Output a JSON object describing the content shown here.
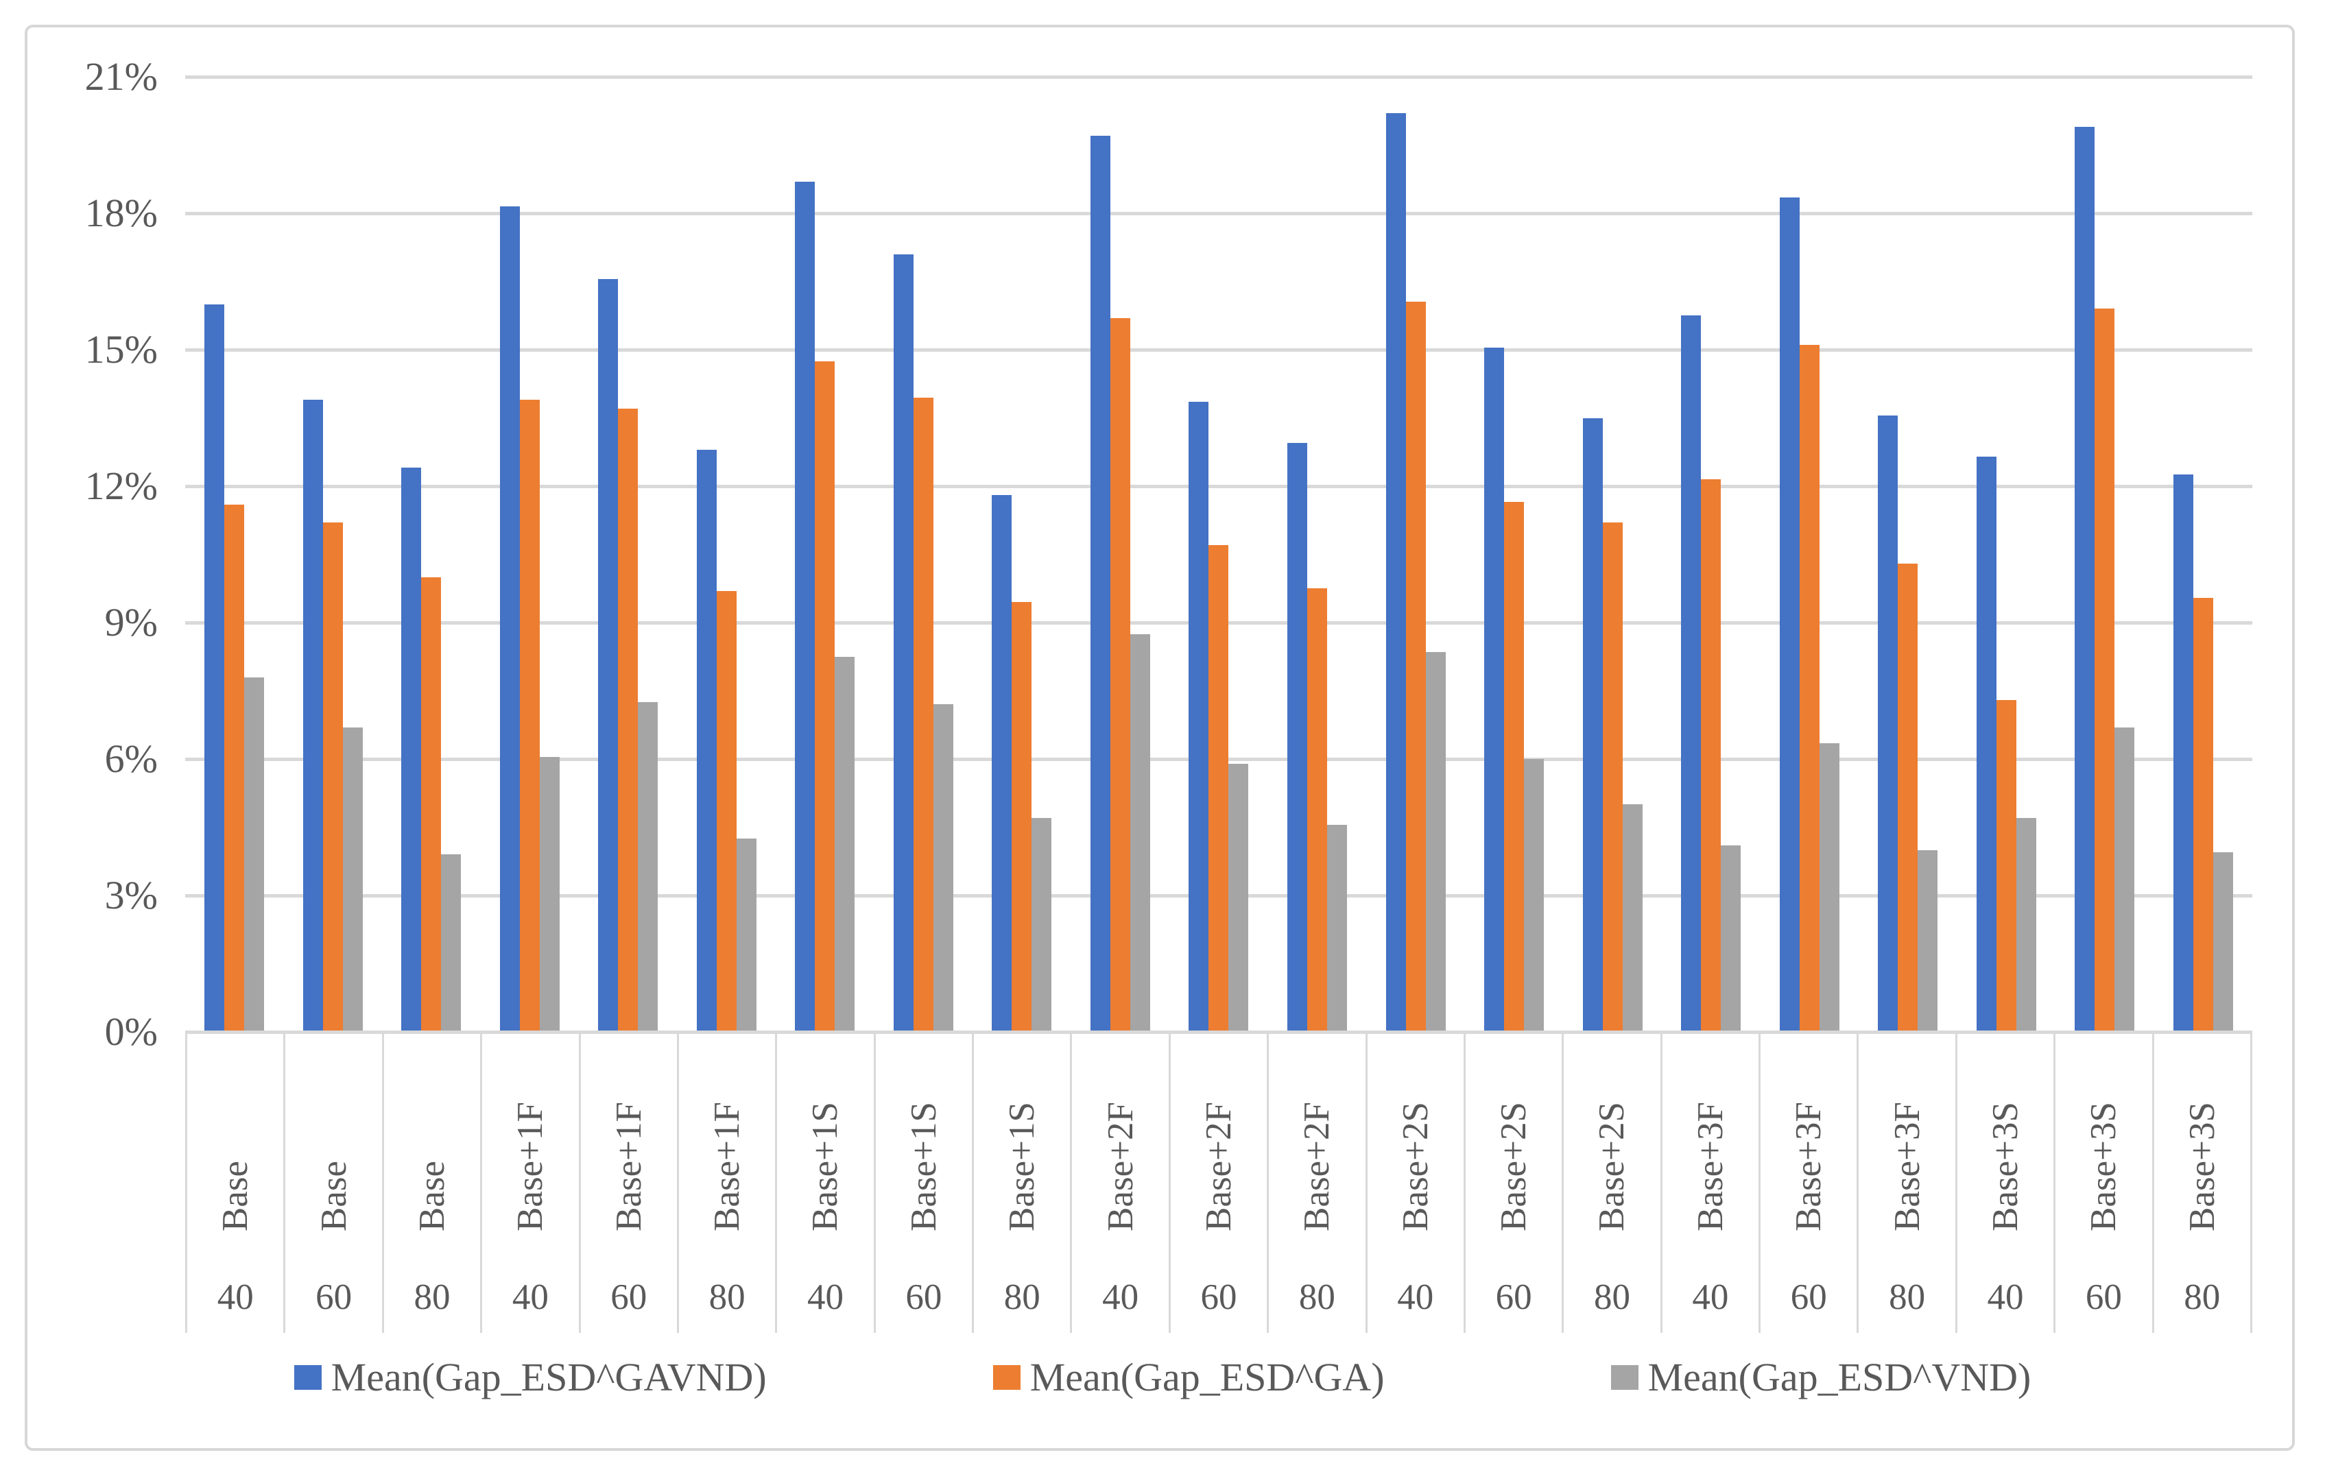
{
  "chart_data": {
    "type": "bar",
    "categories": [
      {
        "scenario": "Base",
        "n": "40"
      },
      {
        "scenario": "Base",
        "n": "60"
      },
      {
        "scenario": "Base",
        "n": "80"
      },
      {
        "scenario": "Base+1F",
        "n": "40"
      },
      {
        "scenario": "Base+1F",
        "n": "60"
      },
      {
        "scenario": "Base+1F",
        "n": "80"
      },
      {
        "scenario": "Base+1S",
        "n": "40"
      },
      {
        "scenario": "Base+1S",
        "n": "60"
      },
      {
        "scenario": "Base+1S",
        "n": "80"
      },
      {
        "scenario": "Base+2F",
        "n": "40"
      },
      {
        "scenario": "Base+2F",
        "n": "60"
      },
      {
        "scenario": "Base+2F",
        "n": "80"
      },
      {
        "scenario": "Base+2S",
        "n": "40"
      },
      {
        "scenario": "Base+2S",
        "n": "60"
      },
      {
        "scenario": "Base+2S",
        "n": "80"
      },
      {
        "scenario": "Base+3F",
        "n": "40"
      },
      {
        "scenario": "Base+3F",
        "n": "60"
      },
      {
        "scenario": "Base+3F",
        "n": "80"
      },
      {
        "scenario": "Base+3S",
        "n": "40"
      },
      {
        "scenario": "Base+3S",
        "n": "60"
      },
      {
        "scenario": "Base+3S",
        "n": "80"
      }
    ],
    "series": [
      {
        "name": "Mean(Gap_ESD^GAVND)",
        "color": "#4472C4",
        "values": [
          16.0,
          13.9,
          12.4,
          18.15,
          16.55,
          12.8,
          18.7,
          17.1,
          11.8,
          19.7,
          13.85,
          12.95,
          20.2,
          15.05,
          13.5,
          15.75,
          18.35,
          13.55,
          12.65,
          19.9,
          12.25
        ]
      },
      {
        "name": "Mean(Gap_ESD^GA)",
        "color": "#ED7D31",
        "values": [
          11.6,
          11.2,
          10.0,
          13.9,
          13.7,
          9.7,
          14.75,
          13.95,
          9.45,
          15.7,
          10.7,
          9.75,
          16.05,
          11.65,
          11.2,
          12.15,
          15.1,
          10.3,
          7.3,
          15.9,
          9.55
        ]
      },
      {
        "name": "Mean(Gap_ESD^VND)",
        "color": "#A5A5A5",
        "values": [
          7.8,
          6.7,
          3.9,
          6.05,
          7.25,
          4.25,
          8.25,
          7.2,
          4.7,
          8.75,
          5.9,
          4.55,
          8.35,
          6.0,
          5.0,
          4.1,
          6.35,
          4.0,
          4.7,
          6.7,
          3.95
        ]
      }
    ],
    "y_axis": {
      "min": 0,
      "max": 21,
      "step": 3,
      "tick_labels": [
        "0%",
        "3%",
        "6%",
        "9%",
        "12%",
        "15%",
        "18%",
        "21%"
      ],
      "unit": "%"
    },
    "grid": true,
    "legend_position": "bottom"
  },
  "style": {
    "gridline_color": "#d9d9d9",
    "axis_text_color": "#595959",
    "border_color": "#d7d7d7",
    "background_color": "#ffffff"
  }
}
